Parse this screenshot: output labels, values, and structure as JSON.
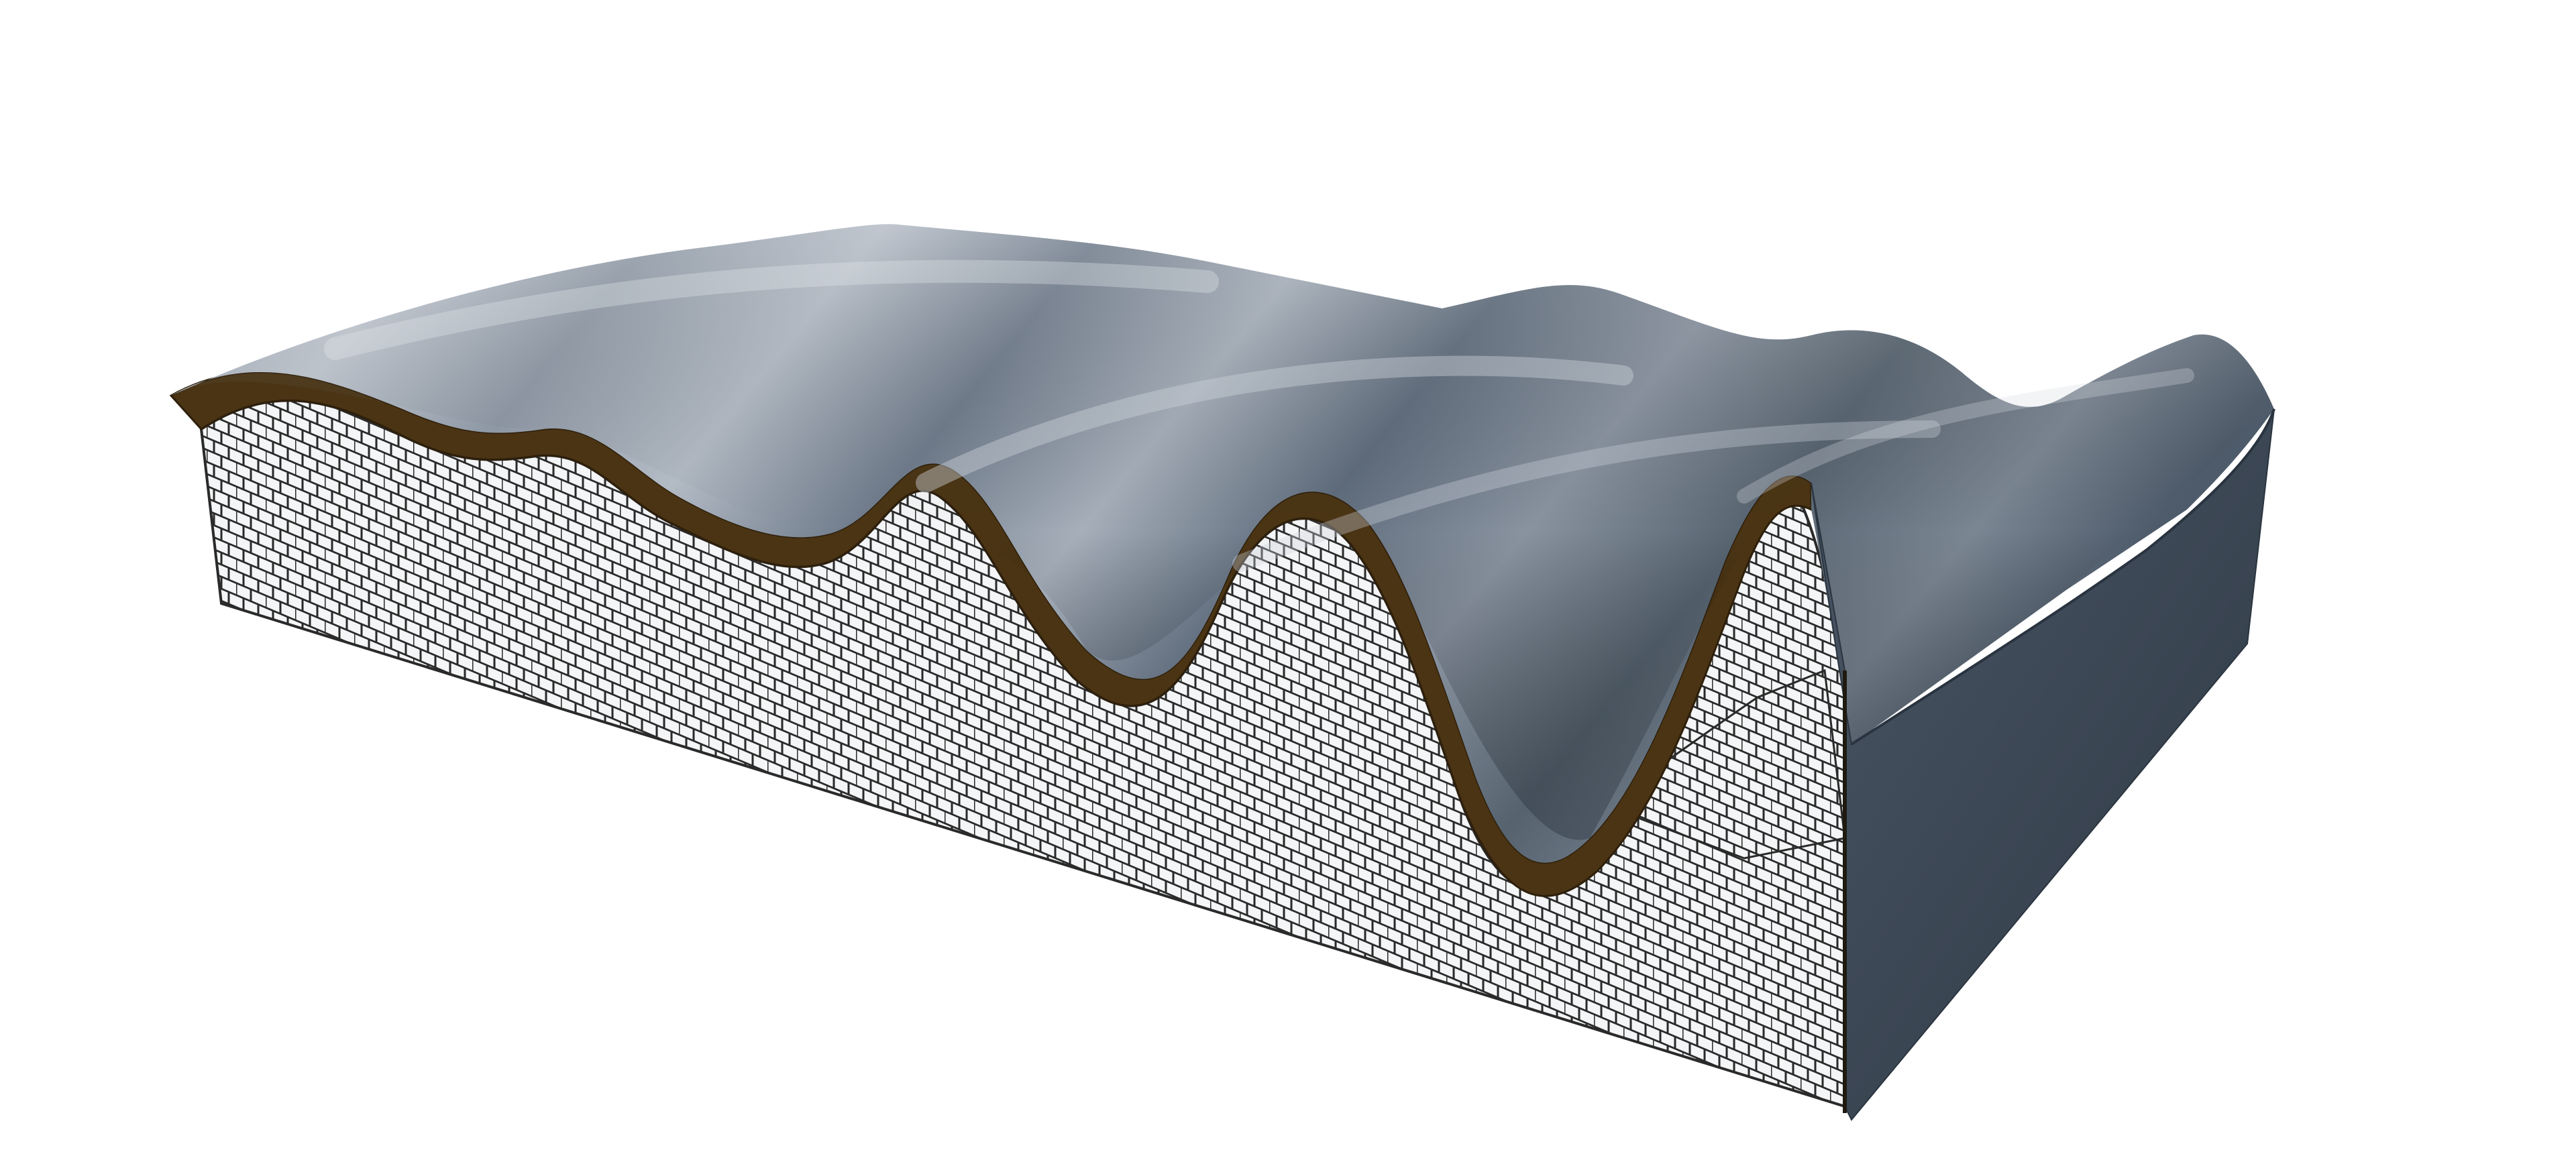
{
  "scene": {
    "subject": "wavy-terrain-block",
    "colors": {
      "background": "#ffffff",
      "surface_light": "#b4bdc8",
      "surface_mid": "#7a8696",
      "surface_dark": "#4a5767",
      "soil_layer": "#4a3414",
      "mesh_fill": "#f4f5f6",
      "mesh_line": "#2a2a2a",
      "side_face": "#3f4b59",
      "side_face_dark": "#2f3a46"
    }
  }
}
